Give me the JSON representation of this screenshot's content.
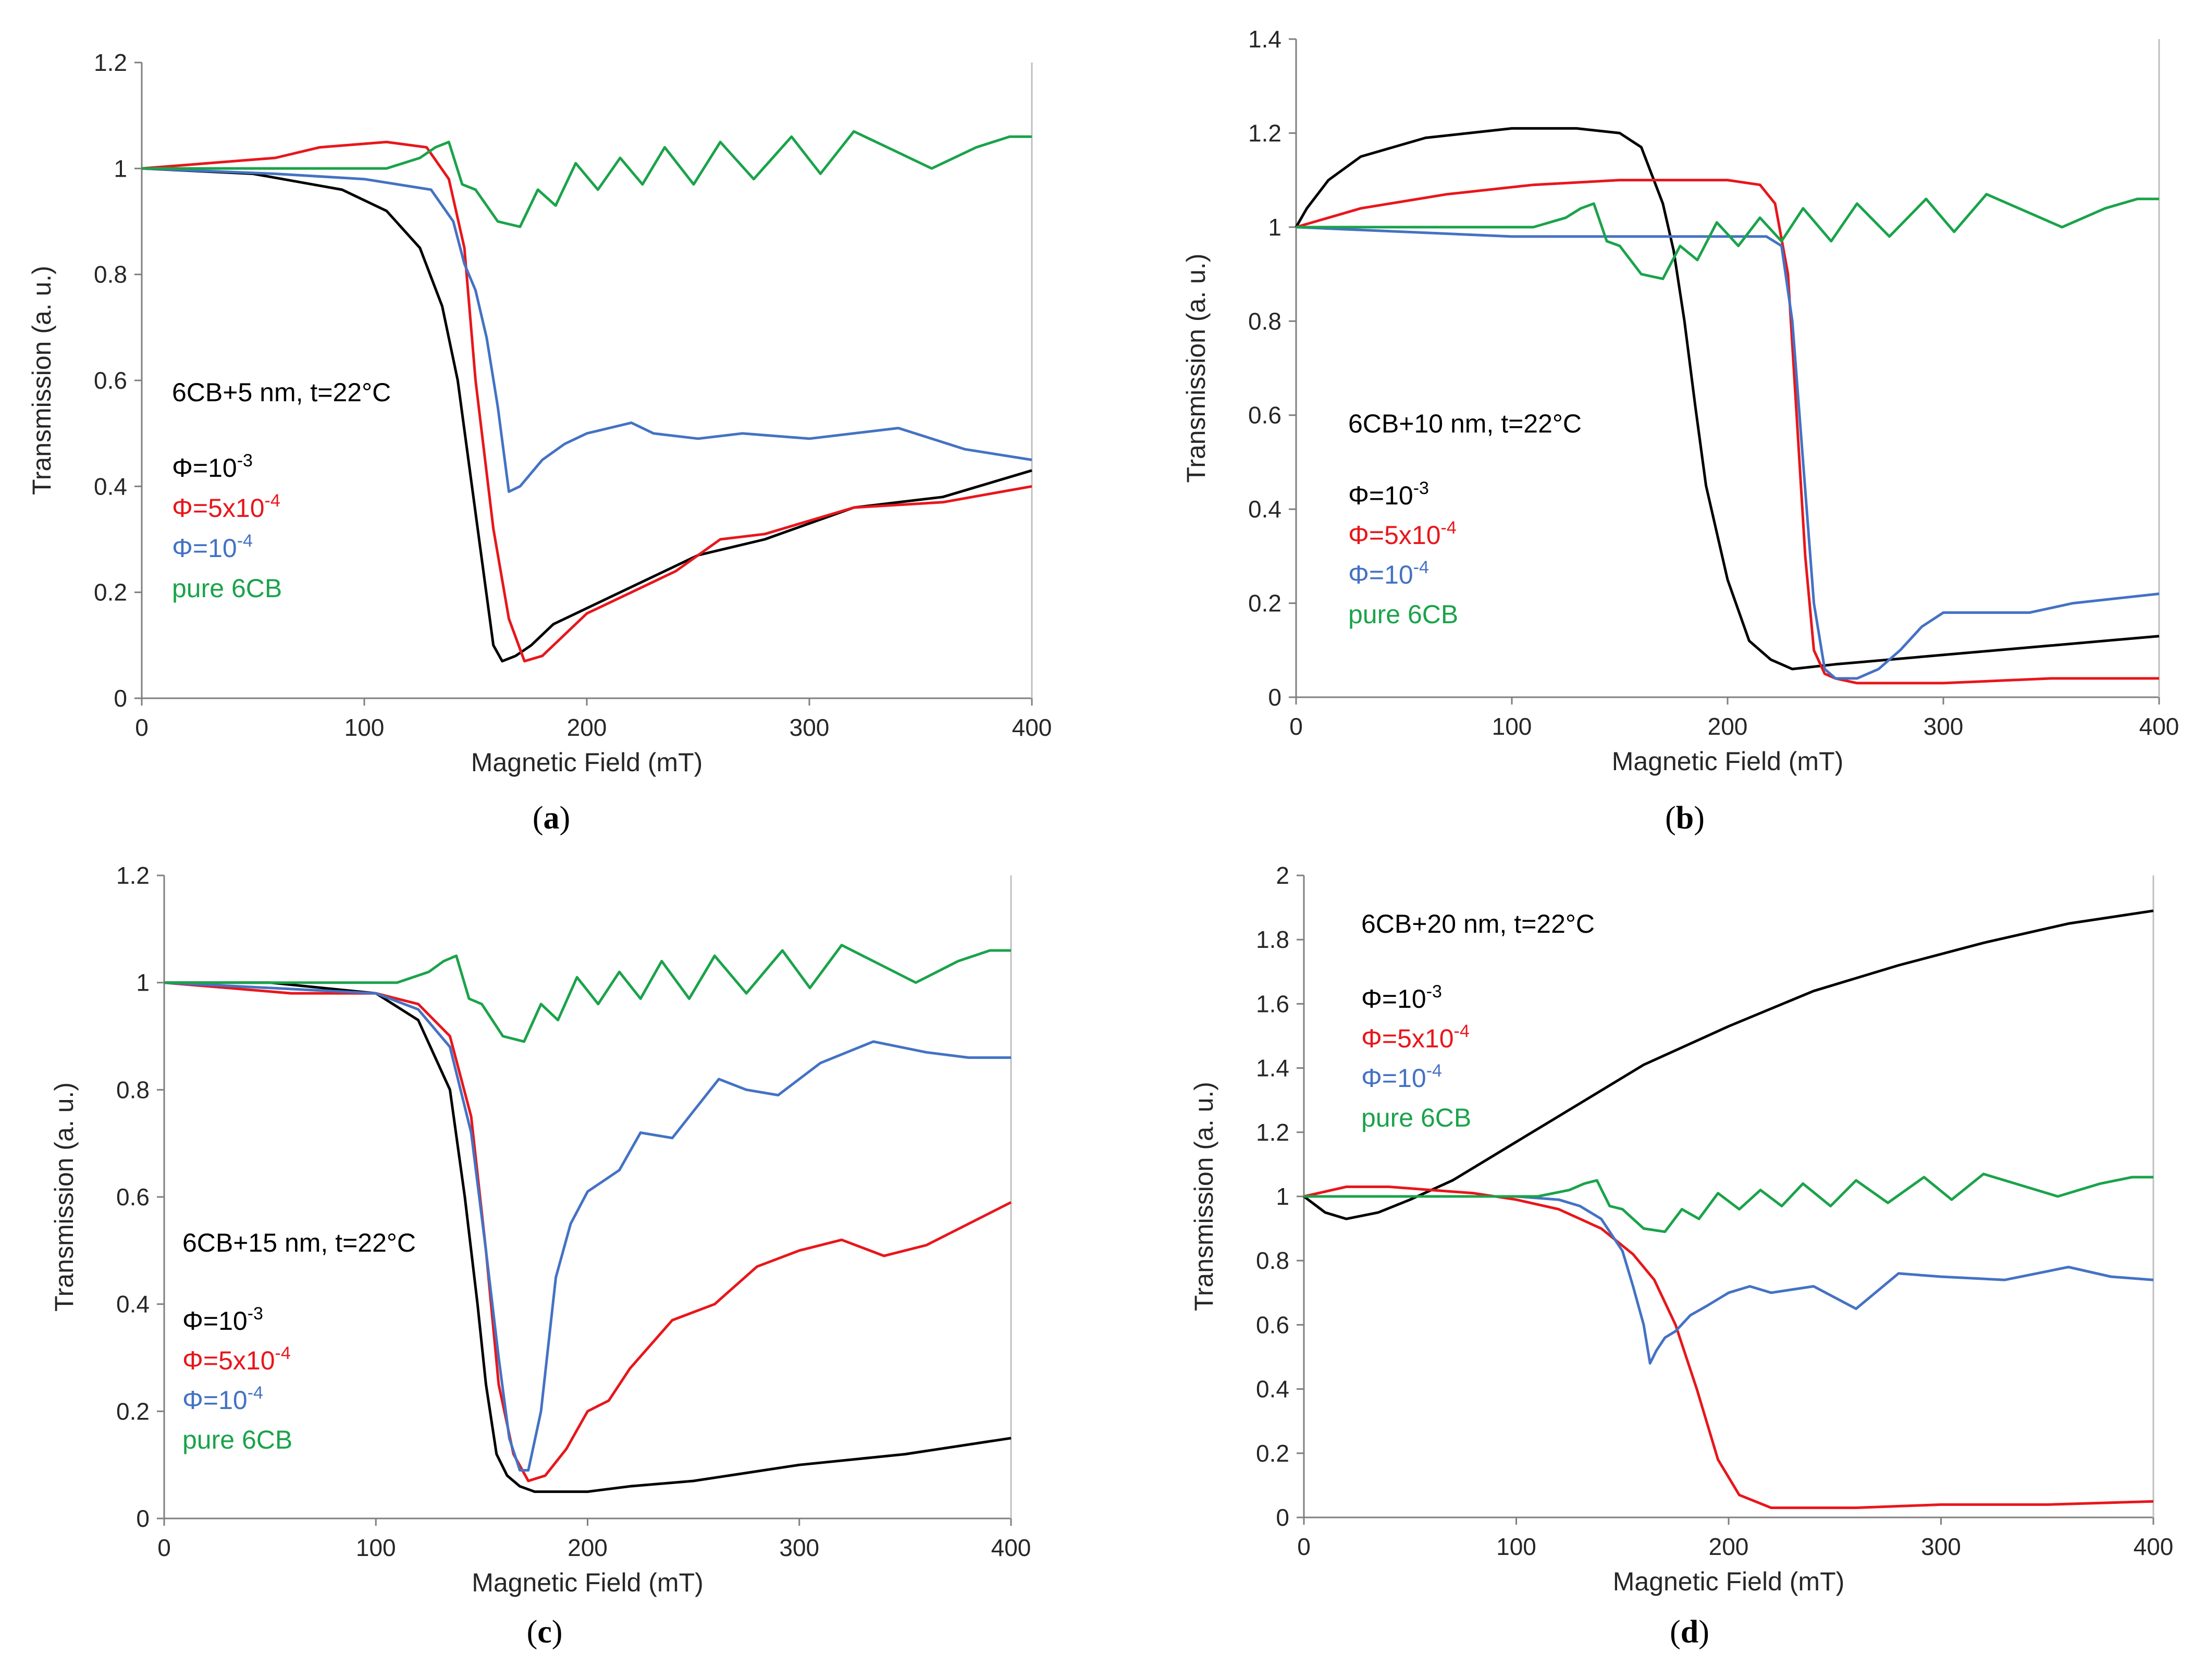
{
  "figure": {
    "colors": {
      "black": "#000000",
      "red": "#e8161b",
      "blue": "#4472c4",
      "green": "#1aa34a"
    }
  },
  "chart_data": [
    {
      "type": "line",
      "panel_label": "(a)",
      "xlabel": "Magnetic Field (mT)",
      "ylabel": "Transmission (a. u.)",
      "xlim": [
        0,
        400
      ],
      "ylim": [
        0,
        1.2
      ],
      "xticks": [
        0,
        100,
        200,
        300,
        400
      ],
      "yticks": [
        0,
        0.2,
        0.4,
        0.6,
        0.8,
        1,
        1.2
      ],
      "ytick_labels": [
        "0",
        "0.2",
        "0.4",
        "0.6",
        "0.8",
        "1",
        "1.2"
      ],
      "annotation": "6CB+5 nm, t=22°C",
      "legend_position": "middle-left",
      "legend": [
        {
          "base": "Φ=10",
          "sup": "-3",
          "color": "#000000"
        },
        {
          "base": "Φ=5x10",
          "sup": "-4",
          "color": "#e8161b"
        },
        {
          "base": "Φ=10",
          "sup": "-4",
          "color": "#4472c4"
        },
        {
          "base": "pure 6CB",
          "sup": "",
          "color": "#1aa34a"
        }
      ],
      "series": [
        {
          "name": "Φ=10^-3",
          "color": "#000000",
          "x": [
            0,
            50,
            90,
            110,
            125,
            135,
            142,
            150,
            158,
            162,
            168,
            175,
            185,
            200,
            220,
            250,
            280,
            320,
            360,
            400
          ],
          "y": [
            1,
            0.99,
            0.96,
            0.92,
            0.85,
            0.74,
            0.6,
            0.35,
            0.1,
            0.07,
            0.08,
            0.1,
            0.14,
            0.17,
            0.21,
            0.27,
            0.3,
            0.36,
            0.38,
            0.43
          ]
        },
        {
          "name": "Φ=5x10^-4",
          "color": "#e8161b",
          "x": [
            0,
            60,
            80,
            110,
            128,
            138,
            145,
            150,
            158,
            165,
            172,
            180,
            190,
            200,
            220,
            240,
            260,
            280,
            320,
            360,
            400
          ],
          "y": [
            1,
            1.02,
            1.04,
            1.05,
            1.04,
            0.98,
            0.85,
            0.6,
            0.32,
            0.15,
            0.07,
            0.08,
            0.12,
            0.16,
            0.2,
            0.24,
            0.3,
            0.31,
            0.36,
            0.37,
            0.4
          ]
        },
        {
          "name": "Φ=10^-4",
          "color": "#4472c4",
          "x": [
            0,
            60,
            100,
            130,
            140,
            145,
            150,
            155,
            160,
            165,
            170,
            180,
            190,
            200,
            210,
            220,
            230,
            250,
            270,
            300,
            340,
            370,
            400
          ],
          "y": [
            1,
            0.99,
            0.98,
            0.96,
            0.9,
            0.82,
            0.77,
            0.68,
            0.55,
            0.39,
            0.4,
            0.45,
            0.48,
            0.5,
            0.51,
            0.52,
            0.5,
            0.49,
            0.5,
            0.49,
            0.51,
            0.47,
            0.45
          ]
        },
        {
          "name": "pure 6CB",
          "color": "#1aa34a",
          "x": [
            0,
            70,
            110,
            125,
            132,
            138,
            144,
            150,
            160,
            170,
            178,
            186,
            195,
            205,
            215,
            225,
            235,
            248,
            260,
            275,
            292,
            305,
            320,
            340,
            355,
            375,
            390,
            400
          ],
          "y": [
            1,
            1,
            1,
            1.02,
            1.04,
            1.05,
            0.97,
            0.96,
            0.9,
            0.89,
            0.96,
            0.93,
            1.01,
            0.96,
            1.02,
            0.97,
            1.04,
            0.97,
            1.05,
            0.98,
            1.06,
            0.99,
            1.07,
            1.03,
            1.0,
            1.04,
            1.06,
            1.06
          ]
        }
      ]
    },
    {
      "type": "line",
      "panel_label": "(b)",
      "xlabel": "Magnetic Field (mT)",
      "ylabel": "Transmission (a. u.)",
      "xlim": [
        0,
        400
      ],
      "ylim": [
        0,
        1.4
      ],
      "xticks": [
        0,
        100,
        200,
        300,
        400
      ],
      "yticks": [
        0,
        0.2,
        0.4,
        0.6,
        0.8,
        1,
        1.2,
        1.4
      ],
      "ytick_labels": [
        "0",
        "0.2",
        "0.4",
        "0.6",
        "0.8",
        "1",
        "1.2",
        "1.4"
      ],
      "annotation": "6CB+10 nm, t=22°C",
      "legend_position": "middle-left",
      "legend": [
        {
          "base": "Φ=10",
          "sup": "-3",
          "color": "#000000"
        },
        {
          "base": "Φ=5x10",
          "sup": "-4",
          "color": "#e8161b"
        },
        {
          "base": "Φ=10",
          "sup": "-4",
          "color": "#4472c4"
        },
        {
          "base": "pure 6CB",
          "sup": "",
          "color": "#1aa34a"
        }
      ],
      "series": [
        {
          "name": "Φ=10^-3",
          "color": "#000000",
          "x": [
            0,
            5,
            15,
            30,
            60,
            100,
            130,
            150,
            160,
            170,
            175,
            180,
            185,
            190,
            200,
            210,
            220,
            230,
            250,
            300,
            350,
            400
          ],
          "y": [
            1,
            1.04,
            1.1,
            1.15,
            1.19,
            1.21,
            1.21,
            1.2,
            1.17,
            1.05,
            0.95,
            0.8,
            0.62,
            0.45,
            0.25,
            0.12,
            0.08,
            0.06,
            0.07,
            0.09,
            0.11,
            0.13
          ]
        },
        {
          "name": "Φ=5x10^-4",
          "color": "#e8161b",
          "x": [
            0,
            30,
            70,
            110,
            150,
            200,
            215,
            222,
            228,
            232,
            236,
            240,
            245,
            250,
            260,
            300,
            350,
            400
          ],
          "y": [
            1,
            1.04,
            1.07,
            1.09,
            1.1,
            1.1,
            1.09,
            1.05,
            0.9,
            0.6,
            0.3,
            0.1,
            0.05,
            0.04,
            0.03,
            0.03,
            0.04,
            0.04
          ]
        },
        {
          "name": "Φ=10^-4",
          "color": "#4472c4",
          "x": [
            0,
            50,
            100,
            150,
            200,
            218,
            225,
            230,
            235,
            240,
            245,
            250,
            260,
            270,
            280,
            290,
            300,
            340,
            360,
            400
          ],
          "y": [
            1,
            0.99,
            0.98,
            0.98,
            0.98,
            0.98,
            0.96,
            0.8,
            0.5,
            0.2,
            0.06,
            0.04,
            0.04,
            0.06,
            0.1,
            0.15,
            0.18,
            0.18,
            0.2,
            0.22
          ]
        },
        {
          "name": "pure 6CB",
          "color": "#1aa34a",
          "x": [
            0,
            60,
            110,
            125,
            132,
            138,
            144,
            150,
            160,
            170,
            178,
            186,
            195,
            205,
            215,
            225,
            235,
            248,
            260,
            275,
            292,
            305,
            320,
            340,
            355,
            375,
            390,
            400
          ],
          "y": [
            1,
            1,
            1,
            1.02,
            1.04,
            1.05,
            0.97,
            0.96,
            0.9,
            0.89,
            0.96,
            0.93,
            1.01,
            0.96,
            1.02,
            0.97,
            1.04,
            0.97,
            1.05,
            0.98,
            1.06,
            0.99,
            1.07,
            1.03,
            1.0,
            1.04,
            1.06,
            1.06
          ]
        }
      ]
    },
    {
      "type": "line",
      "panel_label": "(c)",
      "xlabel": "Magnetic Field (mT)",
      "ylabel": "Transmission (a. u.)",
      "xlim": [
        0,
        400
      ],
      "ylim": [
        0,
        1.2
      ],
      "xticks": [
        0,
        100,
        200,
        300,
        400
      ],
      "yticks": [
        0,
        0.2,
        0.4,
        0.6,
        0.8,
        1,
        1.2
      ],
      "ytick_labels": [
        "0",
        "0.2",
        "0.4",
        "0.6",
        "0.8",
        "1",
        "1.2"
      ],
      "annotation": "6CB+15 nm, t=22°C",
      "legend_position": "bottom-left",
      "legend": [
        {
          "base": "Φ=10",
          "sup": "-3",
          "color": "#000000"
        },
        {
          "base": "Φ=5x10",
          "sup": "-4",
          "color": "#e8161b"
        },
        {
          "base": "Φ=10",
          "sup": "-4",
          "color": "#4472c4"
        },
        {
          "base": "pure 6CB",
          "sup": "",
          "color": "#1aa34a"
        }
      ],
      "series": [
        {
          "name": "Φ=10^-3",
          "color": "#000000",
          "x": [
            0,
            50,
            100,
            120,
            135,
            142,
            148,
            152,
            157,
            162,
            168,
            175,
            185,
            200,
            220,
            250,
            300,
            350,
            400
          ],
          "y": [
            1,
            1,
            0.98,
            0.93,
            0.8,
            0.6,
            0.4,
            0.25,
            0.12,
            0.08,
            0.06,
            0.05,
            0.05,
            0.05,
            0.06,
            0.07,
            0.1,
            0.12,
            0.15
          ]
        },
        {
          "name": "Φ=5x10^-4",
          "color": "#e8161b",
          "x": [
            0,
            30,
            60,
            100,
            120,
            135,
            145,
            152,
            158,
            165,
            172,
            180,
            190,
            200,
            210,
            220,
            240,
            260,
            280,
            300,
            320,
            340,
            360,
            400
          ],
          "y": [
            1,
            0.99,
            0.98,
            0.98,
            0.96,
            0.9,
            0.75,
            0.5,
            0.25,
            0.12,
            0.07,
            0.08,
            0.13,
            0.2,
            0.22,
            0.28,
            0.37,
            0.4,
            0.47,
            0.5,
            0.52,
            0.49,
            0.51,
            0.59
          ]
        },
        {
          "name": "Φ=10^-4",
          "color": "#4472c4",
          "x": [
            0,
            50,
            100,
            120,
            135,
            145,
            152,
            158,
            163,
            168,
            172,
            178,
            185,
            192,
            200,
            215,
            225,
            240,
            250,
            262,
            275,
            290,
            310,
            335,
            360,
            380,
            400
          ],
          "y": [
            1,
            0.99,
            0.98,
            0.95,
            0.88,
            0.72,
            0.5,
            0.3,
            0.15,
            0.09,
            0.09,
            0.2,
            0.45,
            0.55,
            0.61,
            0.65,
            0.72,
            0.71,
            0.76,
            0.82,
            0.8,
            0.79,
            0.85,
            0.89,
            0.87,
            0.86,
            0.86
          ]
        },
        {
          "name": "pure 6CB",
          "color": "#1aa34a",
          "x": [
            0,
            70,
            110,
            125,
            132,
            138,
            144,
            150,
            160,
            170,
            178,
            186,
            195,
            205,
            215,
            225,
            235,
            248,
            260,
            275,
            292,
            305,
            320,
            340,
            355,
            375,
            390,
            400
          ],
          "y": [
            1,
            1,
            1,
            1.02,
            1.04,
            1.05,
            0.97,
            0.96,
            0.9,
            0.89,
            0.96,
            0.93,
            1.01,
            0.96,
            1.02,
            0.97,
            1.04,
            0.97,
            1.05,
            0.98,
            1.06,
            0.99,
            1.07,
            1.03,
            1.0,
            1.04,
            1.06,
            1.06
          ]
        }
      ]
    },
    {
      "type": "line",
      "panel_label": "(d)",
      "xlabel": "Magnetic Field (mT)",
      "ylabel": "Transmission (a. u.)",
      "xlim": [
        0,
        400
      ],
      "ylim": [
        0,
        2
      ],
      "xticks": [
        0,
        100,
        200,
        300,
        400
      ],
      "yticks": [
        0,
        0.2,
        0.4,
        0.6,
        0.8,
        1,
        1.2,
        1.4,
        1.6,
        1.8,
        2
      ],
      "ytick_labels": [
        "0",
        "0.2",
        "0.4",
        "0.6",
        "0.8",
        "1",
        "1.2",
        "1.4",
        "1.6",
        "1.8",
        "2"
      ],
      "annotation": "6CB+20 nm, t=22°C",
      "legend_position": "top-left",
      "legend": [
        {
          "base": "Φ=10",
          "sup": "-3",
          "color": "#000000"
        },
        {
          "base": "Φ=5x10",
          "sup": "-4",
          "color": "#e8161b"
        },
        {
          "base": "Φ=10",
          "sup": "-4",
          "color": "#4472c4"
        },
        {
          "base": "pure 6CB",
          "sup": "",
          "color": "#1aa34a"
        }
      ],
      "series": [
        {
          "name": "Φ=10^-3",
          "color": "#000000",
          "x": [
            0,
            10,
            20,
            35,
            50,
            70,
            100,
            130,
            160,
            200,
            240,
            280,
            320,
            360,
            400
          ],
          "y": [
            1,
            0.95,
            0.93,
            0.95,
            0.99,
            1.05,
            1.17,
            1.29,
            1.41,
            1.53,
            1.64,
            1.72,
            1.79,
            1.85,
            1.89
          ]
        },
        {
          "name": "Φ=5x10^-4",
          "color": "#e8161b",
          "x": [
            0,
            20,
            40,
            60,
            80,
            100,
            120,
            140,
            155,
            165,
            175,
            185,
            195,
            205,
            220,
            260,
            300,
            350,
            400
          ],
          "y": [
            1,
            1.03,
            1.03,
            1.02,
            1.01,
            0.99,
            0.96,
            0.9,
            0.82,
            0.74,
            0.6,
            0.4,
            0.18,
            0.07,
            0.03,
            0.03,
            0.04,
            0.04,
            0.05
          ]
        },
        {
          "name": "Φ=10^-4",
          "color": "#4472c4",
          "x": [
            0,
            50,
            100,
            120,
            130,
            140,
            150,
            155,
            160,
            163,
            166,
            170,
            175,
            182,
            190,
            200,
            210,
            220,
            240,
            260,
            280,
            300,
            330,
            360,
            380,
            400
          ],
          "y": [
            1,
            1,
            1,
            0.99,
            0.97,
            0.93,
            0.83,
            0.72,
            0.6,
            0.48,
            0.52,
            0.56,
            0.58,
            0.63,
            0.66,
            0.7,
            0.72,
            0.7,
            0.72,
            0.65,
            0.76,
            0.75,
            0.74,
            0.78,
            0.75,
            0.74
          ]
        },
        {
          "name": "pure 6CB",
          "color": "#1aa34a",
          "x": [
            0,
            70,
            110,
            125,
            132,
            138,
            144,
            150,
            160,
            170,
            178,
            186,
            195,
            205,
            215,
            225,
            235,
            248,
            260,
            275,
            292,
            305,
            320,
            340,
            355,
            375,
            390,
            400
          ],
          "y": [
            1,
            1,
            1,
            1.02,
            1.04,
            1.05,
            0.97,
            0.96,
            0.9,
            0.89,
            0.96,
            0.93,
            1.01,
            0.96,
            1.02,
            0.97,
            1.04,
            0.97,
            1.05,
            0.98,
            1.06,
            0.99,
            1.07,
            1.03,
            1.0,
            1.04,
            1.06,
            1.06
          ]
        }
      ]
    }
  ]
}
